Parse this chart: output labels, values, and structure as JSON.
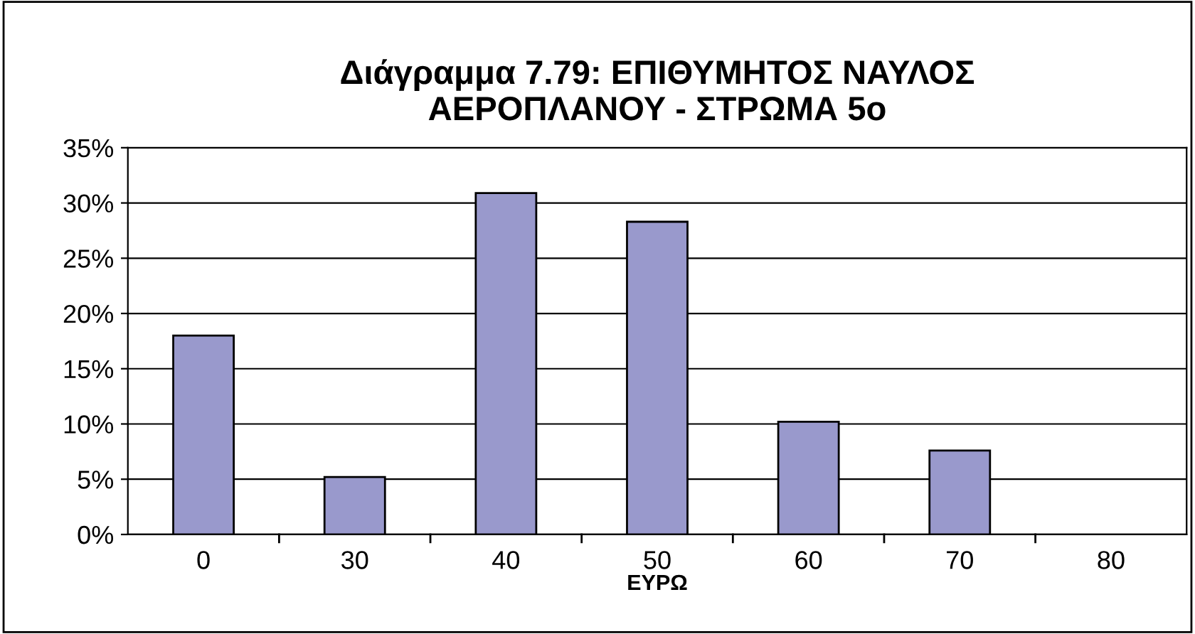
{
  "chart_data": {
    "type": "bar",
    "title": "Διάγραμμα 7.79: ΕΠΙΘΥΜΗΤΟΣ ΝΑΥΛΟΣ\nΑΕΡΟΠΛΑΝΟΥ - ΣΤΡΩΜΑ 5ο",
    "xlabel": "ΕΥΡΩ",
    "categories": [
      "0",
      "30",
      "40",
      "50",
      "60",
      "70",
      "80"
    ],
    "values": [
      18.0,
      5.2,
      30.9,
      28.3,
      10.2,
      7.6,
      0
    ],
    "color": "#9999cc",
    "ylim": [
      0,
      35
    ],
    "yticks": [
      {
        "value": 0,
        "label": "0%"
      },
      {
        "value": 5,
        "label": "5%"
      },
      {
        "value": 10,
        "label": "10%"
      },
      {
        "value": 15,
        "label": "15%"
      },
      {
        "value": 20,
        "label": "20%"
      },
      {
        "value": 25,
        "label": "25%"
      },
      {
        "value": 30,
        "label": "30%"
      },
      {
        "value": 35,
        "label": "35%"
      }
    ],
    "grid": "y",
    "legend": false
  }
}
